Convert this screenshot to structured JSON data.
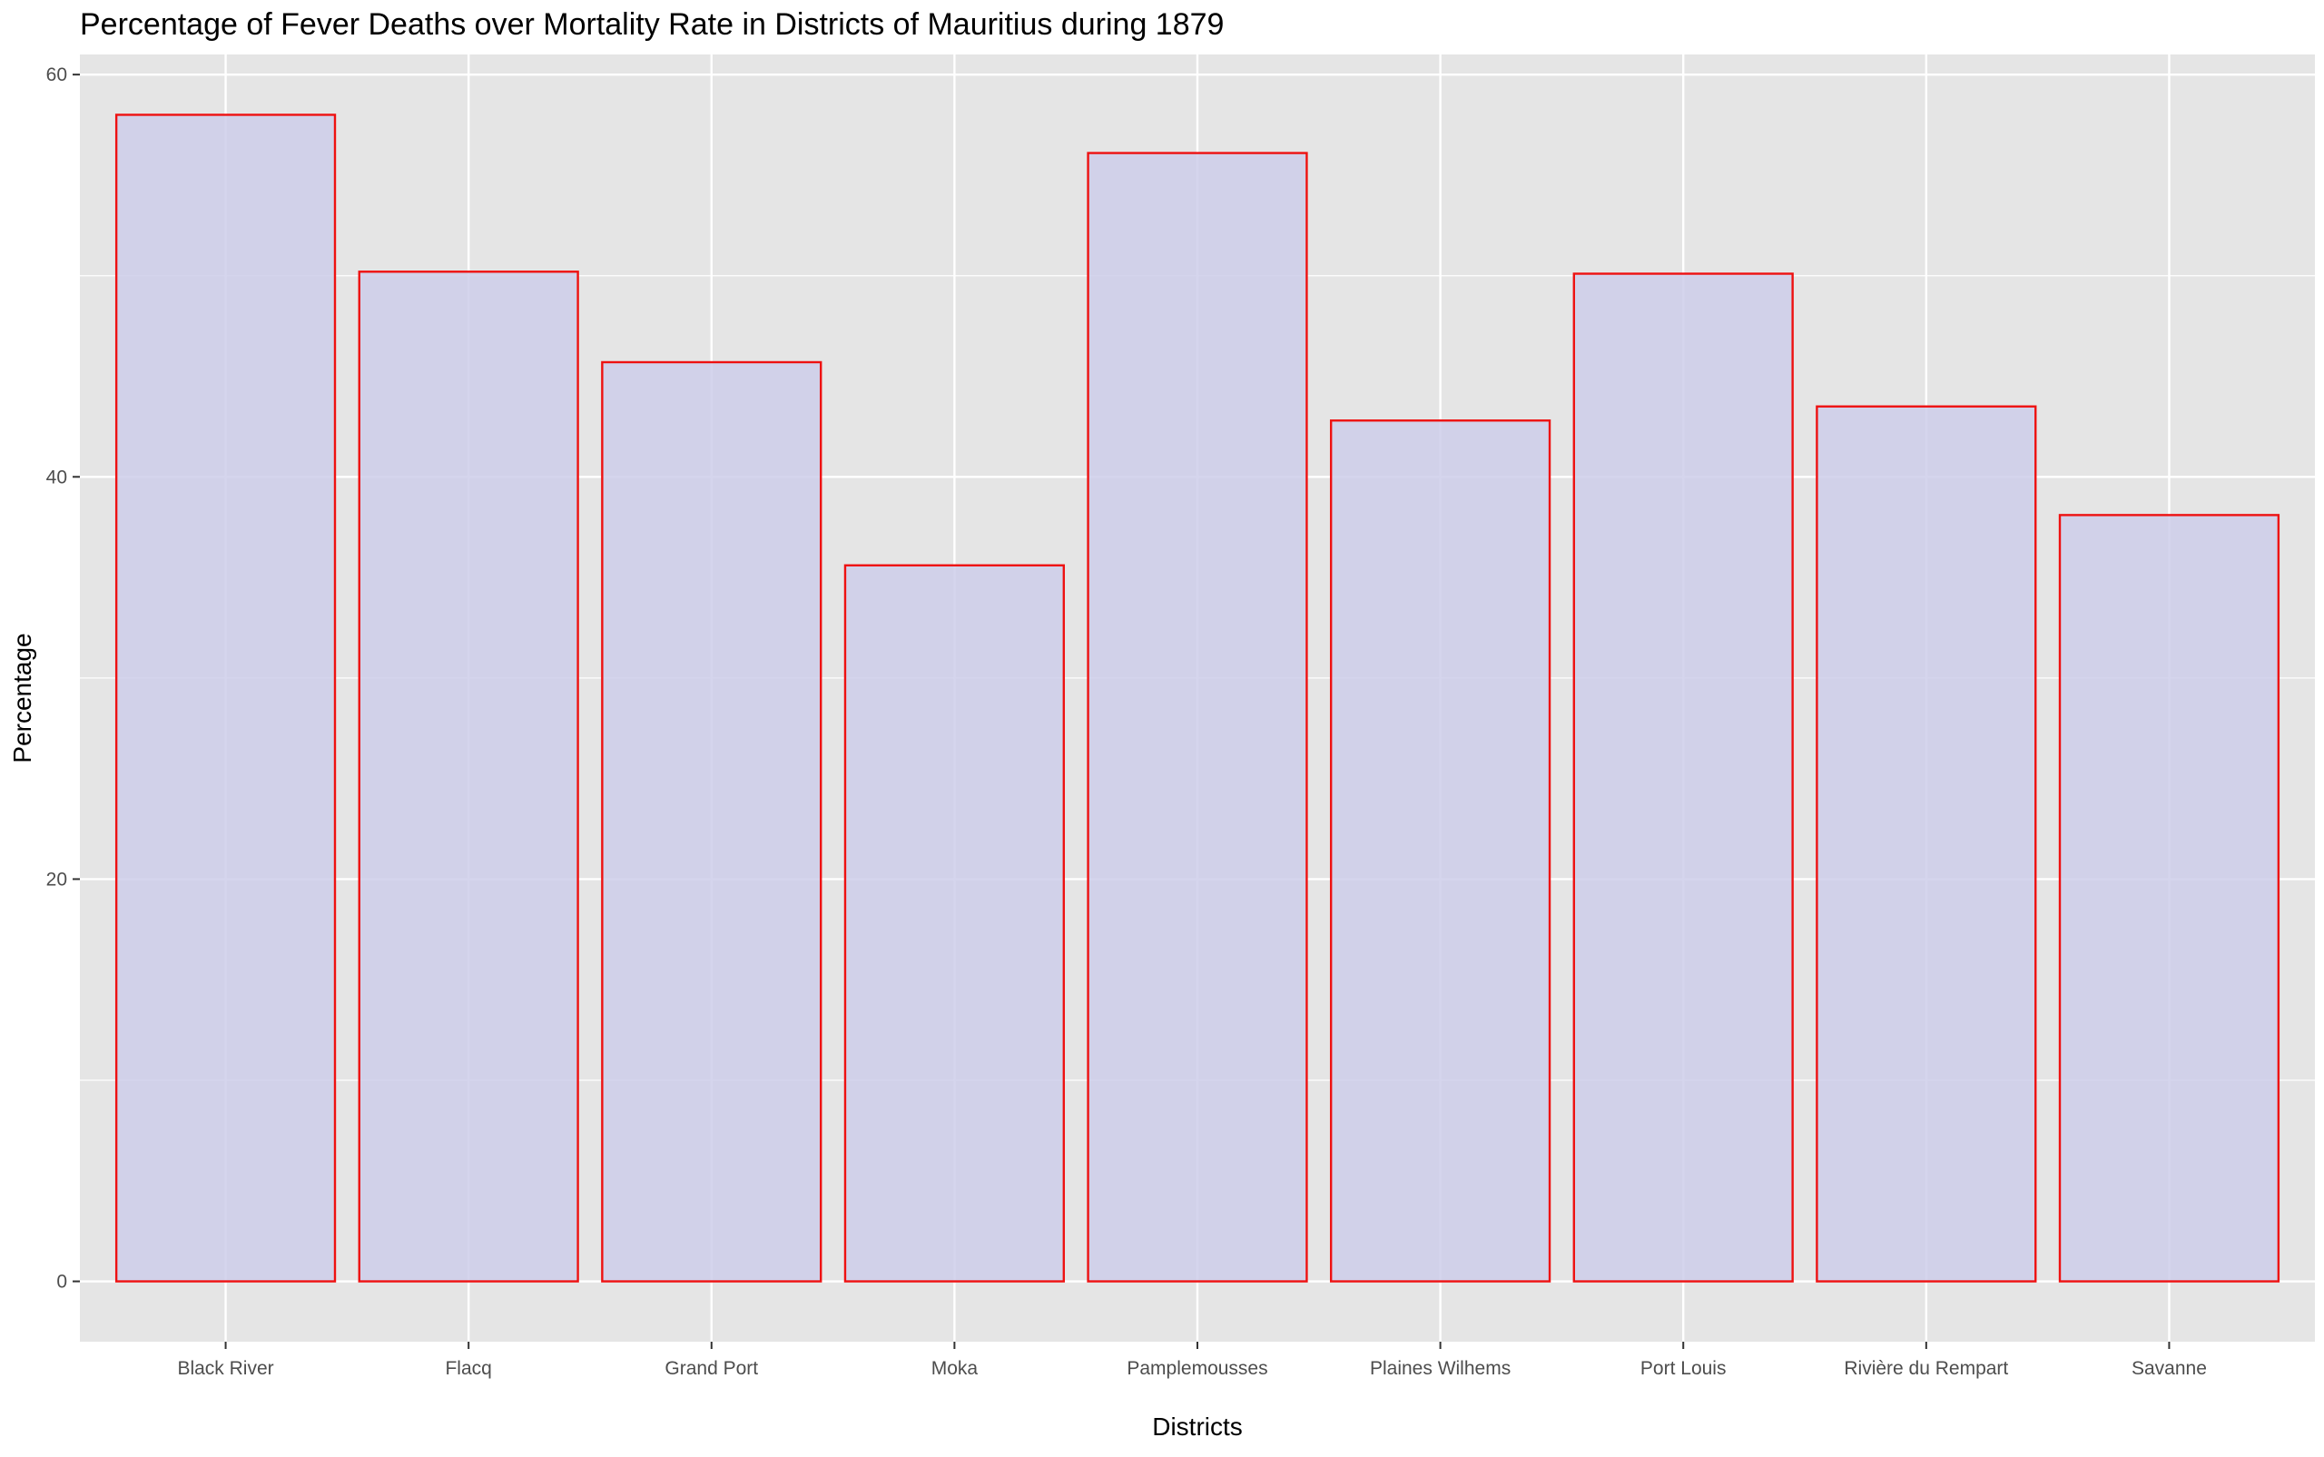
{
  "chart_data": {
    "type": "bar",
    "title": "Percentage of Fever Deaths over Mortality Rate in Districts of Mauritius during 1879",
    "xlabel": "Districts",
    "ylabel": "Percentage",
    "categories": [
      "Black River",
      "Flacq",
      "Grand Port",
      "Moka",
      "Pamplemousses",
      "Plaines Wilhems",
      "Port Louis",
      "Rivière du Rempart",
      "Savanne"
    ],
    "values": [
      58.0,
      50.2,
      45.7,
      35.6,
      56.1,
      42.8,
      50.1,
      43.5,
      38.1
    ],
    "ylim": [
      -3.0,
      61.0
    ],
    "y_ticks": [
      0,
      20,
      40,
      60
    ],
    "grid": true,
    "legend": "none",
    "colors": {
      "panel": "#e5e5e5",
      "grid": "#ffffff",
      "bar_fill": "#ceceea",
      "bar_outline": "#ee1111"
    }
  }
}
